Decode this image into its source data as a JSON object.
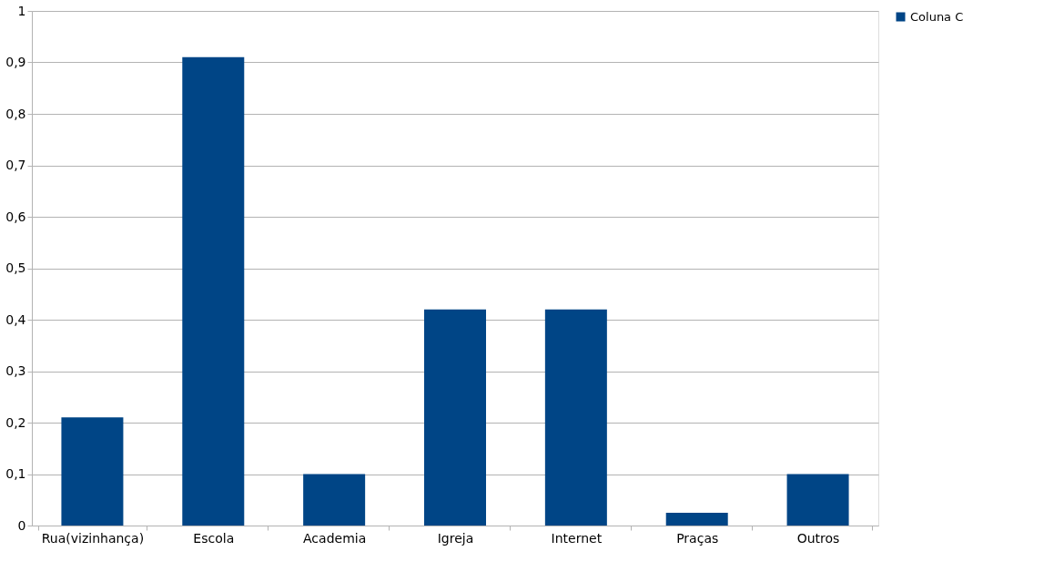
{
  "chart_data": {
    "type": "bar",
    "categories": [
      "Rua(vizinhança)",
      "Escola",
      "Academia",
      "Igreja",
      "Internet",
      "Praças",
      "Outros"
    ],
    "series": [
      {
        "name": "Coluna C",
        "color": "#004586",
        "values": [
          0.21,
          0.91,
          0.1,
          0.42,
          0.42,
          0.025,
          0.1
        ]
      }
    ],
    "ylim": [
      0,
      1
    ],
    "yticks": [
      0,
      {
        "value": 0.1,
        "label": "0,1"
      },
      {
        "value": 0.2,
        "label": "0,2"
      },
      {
        "value": 0.3,
        "label": "0,3"
      },
      {
        "value": 0.4,
        "label": "0,4"
      },
      {
        "value": 0.5,
        "label": "0,5"
      },
      {
        "value": 0.6,
        "label": "0,6"
      },
      {
        "value": 0.7,
        "label": "0,7"
      },
      {
        "value": 0.8,
        "label": "0,8"
      },
      {
        "value": 0.9,
        "label": "0,9"
      },
      1
    ],
    "grid": "y",
    "legend": "right"
  }
}
